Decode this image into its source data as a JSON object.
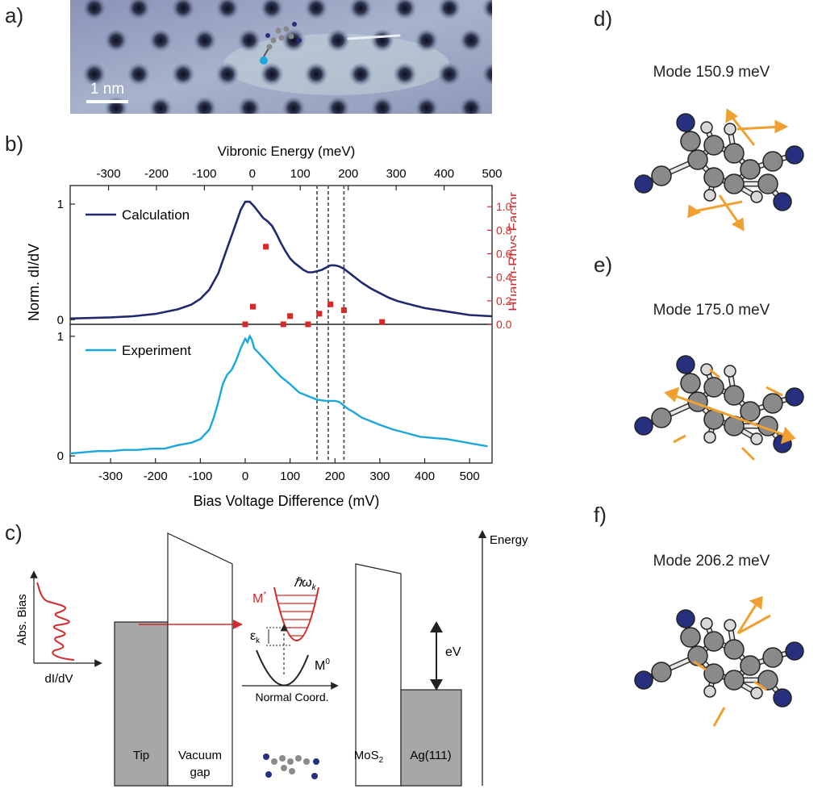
{
  "panel_labels": {
    "a": "a)",
    "b": "b)",
    "c": "c)",
    "d": "d)",
    "e": "e)",
    "f": "f)"
  },
  "stm_image": {
    "scalebar_label": "1 nm"
  },
  "chart_data": {
    "type": "line",
    "top_axis_label": "Vibronic Energy (meV)",
    "top_ticks": [
      -300,
      -200,
      -100,
      0,
      100,
      200,
      300,
      400,
      500
    ],
    "top_range": [
      -380,
      500
    ],
    "xlabel": "Bias Voltage Difference (mV)",
    "x_ticks": [
      -300,
      -200,
      -100,
      0,
      100,
      200,
      300,
      400,
      500
    ],
    "xlim": [
      -390,
      550
    ],
    "ylabel": "Norm. dI/dV",
    "y2label": "Huang-Rhys Factor",
    "y2_ticks": [
      "0.0",
      "0.2",
      "0.4",
      "0.6",
      "0.8",
      "1.0"
    ],
    "y2lim": [
      0,
      1.18
    ],
    "dashed_lines_mV": [
      160,
      185,
      220
    ],
    "calc_panel": {
      "y_ticks": [
        "0",
        "1"
      ],
      "ylim": [
        -0.04,
        1.16
      ],
      "series": [
        {
          "name": "Calculation",
          "color": "#1f2a6e",
          "x": [
            -390,
            -300,
            -250,
            -200,
            -150,
            -120,
            -100,
            -80,
            -60,
            -40,
            -20,
            -10,
            0,
            10,
            20,
            30,
            40,
            50,
            60,
            70,
            80,
            90,
            100,
            110,
            120,
            130,
            140,
            150,
            160,
            170,
            180,
            190,
            200,
            210,
            220,
            230,
            240,
            250,
            260,
            280,
            300,
            320,
            340,
            360,
            380,
            400,
            450,
            500,
            550
          ],
          "y": [
            0.01,
            0.02,
            0.03,
            0.05,
            0.09,
            0.13,
            0.18,
            0.26,
            0.4,
            0.62,
            0.84,
            0.95,
            1.02,
            1.02,
            0.98,
            0.93,
            0.88,
            0.85,
            0.81,
            0.74,
            0.66,
            0.59,
            0.53,
            0.49,
            0.46,
            0.43,
            0.41,
            0.41,
            0.42,
            0.43,
            0.45,
            0.47,
            0.47,
            0.46,
            0.44,
            0.41,
            0.38,
            0.35,
            0.32,
            0.27,
            0.23,
            0.19,
            0.16,
            0.14,
            0.12,
            0.1,
            0.07,
            0.04,
            0.03
          ]
        }
      ]
    },
    "huang_rhys": {
      "name": "Huang-Rhys Factor",
      "color": "#d42a2a",
      "x": [
        0,
        17,
        46,
        85,
        100,
        140,
        165,
        190,
        220,
        305
      ],
      "y": [
        0.0,
        0.15,
        0.66,
        0.0,
        0.07,
        0.0,
        0.09,
        0.17,
        0.12,
        0.02
      ]
    },
    "exp_panel": {
      "y_ticks": [
        "0",
        "1"
      ],
      "ylim": [
        -0.06,
        1.1
      ],
      "series": [
        {
          "name": "Experiment",
          "color": "#1aa7de",
          "x": [
            -390,
            -360,
            -330,
            -300,
            -270,
            -240,
            -210,
            -180,
            -150,
            -120,
            -100,
            -80,
            -70,
            -60,
            -50,
            -40,
            -30,
            -20,
            -10,
            0,
            5,
            10,
            15,
            20,
            30,
            40,
            50,
            60,
            70,
            80,
            90,
            100,
            120,
            140,
            160,
            180,
            200,
            210,
            220,
            230,
            240,
            260,
            280,
            300,
            330,
            360,
            390,
            420,
            450,
            480,
            510,
            540
          ],
          "y": [
            0.02,
            0.03,
            0.04,
            0.04,
            0.05,
            0.05,
            0.06,
            0.06,
            0.09,
            0.11,
            0.14,
            0.22,
            0.32,
            0.45,
            0.6,
            0.68,
            0.72,
            0.8,
            0.9,
            0.98,
            0.95,
            1.0,
            0.97,
            0.9,
            0.86,
            0.82,
            0.78,
            0.74,
            0.7,
            0.66,
            0.63,
            0.6,
            0.53,
            0.5,
            0.47,
            0.46,
            0.46,
            0.45,
            0.42,
            0.39,
            0.37,
            0.32,
            0.29,
            0.26,
            0.22,
            0.19,
            0.16,
            0.15,
            0.14,
            0.12,
            0.1,
            0.08
          ]
        }
      ]
    }
  },
  "schematic": {
    "side_ylabel": "Abs. Bias",
    "side_xlabel": "dI/dV",
    "energy_label": "Energy",
    "hbar_omega": "ℏω",
    "hbar_omega_sub": "k",
    "m_star": "M",
    "m_star_sup": "*",
    "m_zero": "M",
    "m_zero_sup": "0",
    "epsilon": "ε",
    "epsilon_sub": "k",
    "normal_coord": "Normal Coord.",
    "ev_label": "eV",
    "tip_label": "Tip",
    "vacuum_label_1": "Vacuum",
    "vacuum_label_2": "gap",
    "mos2_label": "MoS",
    "mos2_sub": "2",
    "ag_label": "Ag(111)"
  },
  "modes": [
    {
      "title": "Mode 150.9 meV"
    },
    {
      "title": "Mode 175.0 meV"
    },
    {
      "title": "Mode 206.2 meV"
    }
  ],
  "colors": {
    "calc": "#1f2a6e",
    "exp": "#1aa7de",
    "hr": "#d42a2a",
    "arrow": "#f0a030",
    "nitrogen": "#27307f",
    "carbon": "#8a8a8a",
    "hydrogen": "#d8d8d8"
  }
}
